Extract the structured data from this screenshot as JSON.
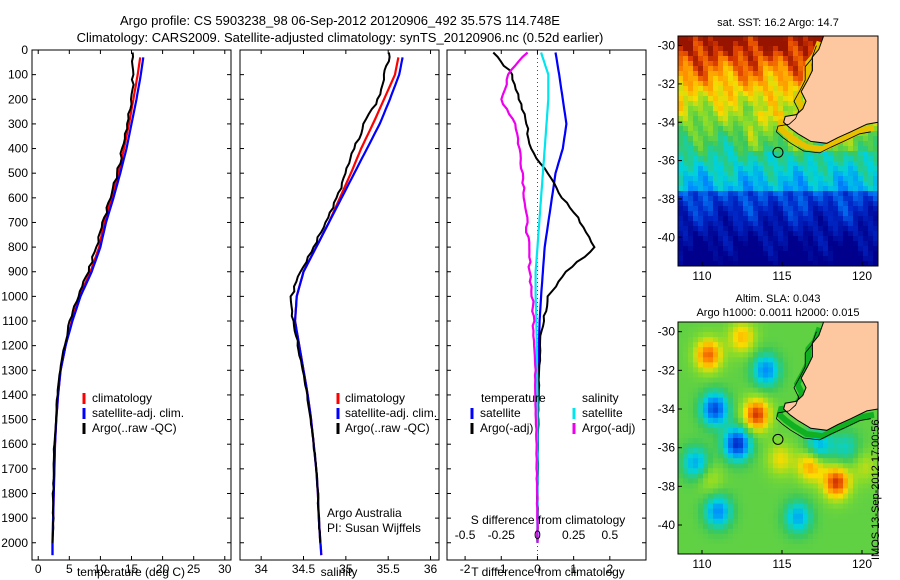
{
  "title": {
    "line1": "Argo profile: CS 5903238_98 06-Sep-2012 20120906_492 35.57S 114.748E",
    "line2": "Climatology: CARS2009. Satellite-adjusted climatology: synTS_20120906.nc (0.52d earlier)"
  },
  "colors": {
    "climatology": "#ff0000",
    "satellite": "#0000ff",
    "argo": "#000000",
    "satellite_s": "#00e5ee",
    "argo_s": "#ee00ee"
  },
  "chart_data": [
    {
      "id": "temperature",
      "type": "line",
      "xlabel": "temperature (deg C)",
      "ylabel": "",
      "xlim": [
        -1,
        31
      ],
      "ylim": [
        2070,
        0
      ],
      "xticks": [
        0,
        5,
        10,
        15,
        20,
        25,
        30
      ],
      "yticks": [
        0,
        100,
        200,
        300,
        400,
        500,
        600,
        700,
        800,
        900,
        1000,
        1100,
        1200,
        1300,
        1400,
        1500,
        1600,
        1700,
        1800,
        1900,
        2000
      ],
      "legend": [
        "climatology",
        "satellite-adj. clim.",
        "Argo(..raw -QC)"
      ],
      "series": [
        {
          "name": "climatology",
          "color": "#ff0000",
          "x": [
            16.4,
            16.0,
            15.3,
            14.6,
            13.8,
            12.9,
            11.8,
            10.6,
            9.8,
            8.4,
            6.6,
            5.4,
            4.4,
            3.6,
            3.2,
            2.9,
            2.7,
            2.6,
            2.5,
            2.4,
            2.3,
            2.3
          ],
          "y": [
            30,
            100,
            200,
            300,
            400,
            500,
            600,
            700,
            800,
            900,
            1000,
            1100,
            1200,
            1300,
            1400,
            1500,
            1600,
            1700,
            1800,
            1900,
            2000,
            2050
          ]
        },
        {
          "name": "satellite-adj. clim.",
          "color": "#0000ff",
          "x": [
            16.9,
            16.5,
            15.8,
            15.0,
            14.2,
            13.2,
            12.1,
            10.9,
            10.0,
            8.6,
            6.8,
            5.5,
            4.4,
            3.6,
            3.2,
            2.9,
            2.7,
            2.6,
            2.5,
            2.4,
            2.3,
            2.3
          ],
          "y": [
            30,
            100,
            200,
            300,
            400,
            500,
            600,
            700,
            800,
            900,
            1000,
            1100,
            1200,
            1300,
            1400,
            1500,
            1600,
            1700,
            1800,
            1900,
            2000,
            2050
          ]
        },
        {
          "name": "Argo(..raw -QC)",
          "color": "#000000",
          "x": [
            15.2,
            15.3,
            15.0,
            14.4,
            13.6,
            12.7,
            11.6,
            10.4,
            9.4,
            8.0,
            6.4,
            5.2,
            4.2,
            3.5,
            3.1,
            2.8,
            2.6,
            2.5,
            2.4,
            2.4,
            2.3
          ],
          "y": [
            10,
            100,
            200,
            300,
            400,
            500,
            600,
            700,
            800,
            900,
            1000,
            1100,
            1200,
            1300,
            1400,
            1500,
            1600,
            1700,
            1800,
            1900,
            2000
          ]
        }
      ]
    },
    {
      "id": "salinity",
      "type": "line",
      "xlabel": "salinity",
      "ylabel": "",
      "xlim": [
        33.75,
        36.1
      ],
      "ylim": [
        2070,
        0
      ],
      "xticks": [
        34,
        34.5,
        35,
        35.5,
        36
      ],
      "xticklabels": [
        "34",
        "34.5",
        "35",
        "35.5",
        "36"
      ],
      "legend": [
        "climatology",
        "satellite-adj. clim.",
        "Argo(..raw -QC)"
      ],
      "annotation": [
        "Argo Australia",
        "PI: Susan Wijffels"
      ],
      "series": [
        {
          "name": "climatology",
          "color": "#ff0000",
          "x": [
            35.62,
            35.58,
            35.45,
            35.32,
            35.18,
            35.06,
            34.93,
            34.8,
            34.65,
            34.5,
            34.42,
            34.4,
            34.45,
            34.5,
            34.55,
            34.59,
            34.62,
            34.65,
            34.67,
            34.68,
            34.7,
            34.71
          ],
          "y": [
            30,
            100,
            200,
            300,
            400,
            500,
            600,
            700,
            800,
            900,
            1000,
            1100,
            1200,
            1300,
            1400,
            1500,
            1600,
            1700,
            1800,
            1900,
            2000,
            2050
          ]
        },
        {
          "name": "satellite-adj. clim.",
          "color": "#0000ff",
          "x": [
            35.67,
            35.63,
            35.52,
            35.4,
            35.25,
            35.1,
            34.95,
            34.8,
            34.65,
            34.5,
            34.42,
            34.4,
            34.45,
            34.5,
            34.55,
            34.59,
            34.62,
            34.65,
            34.67,
            34.68,
            34.7,
            34.71
          ],
          "y": [
            30,
            100,
            200,
            300,
            400,
            500,
            600,
            700,
            800,
            900,
            1000,
            1100,
            1200,
            1300,
            1400,
            1500,
            1600,
            1700,
            1800,
            1900,
            2000,
            2050
          ]
        },
        {
          "name": "Argo(..raw -QC)",
          "color": "#000000",
          "x": [
            35.52,
            35.46,
            35.38,
            35.22,
            35.1,
            35.0,
            34.9,
            34.77,
            34.62,
            34.46,
            34.36,
            34.38,
            34.43,
            34.49,
            34.54,
            34.58,
            34.62,
            34.65,
            34.67,
            34.68,
            34.7
          ],
          "y": [
            10,
            100,
            200,
            300,
            400,
            500,
            600,
            700,
            800,
            900,
            1000,
            1100,
            1200,
            1300,
            1400,
            1500,
            1600,
            1700,
            1800,
            1900,
            2000
          ]
        }
      ]
    },
    {
      "id": "difference",
      "type": "line",
      "xlabel": "T difference from climatology",
      "xlabel_top": "S difference from climatology",
      "ylabel": "",
      "xlim": [
        -2.5,
        3
      ],
      "ylim": [
        2070,
        0
      ],
      "xticks": [
        -2,
        -1,
        0,
        1,
        2
      ],
      "sticks": [
        "-0.5",
        "-0.25",
        "0",
        "0.25",
        "0.5"
      ],
      "sticks_x": [
        -2,
        -1,
        0,
        1,
        2
      ],
      "legend_left_title": "temperature",
      "legend_right_title": "salinity",
      "legend_left": [
        "satellite",
        "Argo(-adj)"
      ],
      "legend_right": [
        "satellite",
        "Argo(-adj)"
      ],
      "series": [
        {
          "name": "satellite",
          "color": "#0000ff",
          "x": [
            0.5,
            0.6,
            0.7,
            0.8,
            0.7,
            0.5,
            0.4,
            0.3,
            0.2,
            0.15,
            0.1,
            0.06,
            0.04,
            0.03,
            0.02,
            0.01,
            0.01,
            0.0,
            0.0,
            0.0,
            0.0
          ],
          "y": [
            10,
            100,
            200,
            300,
            400,
            500,
            600,
            700,
            800,
            900,
            1000,
            1100,
            1200,
            1300,
            1400,
            1500,
            1600,
            1700,
            1800,
            1900,
            2000
          ]
        },
        {
          "name": "Argo(-adj)",
          "color": "#000000",
          "x": [
            -1.2,
            -0.7,
            -0.5,
            -0.3,
            -0.2,
            0.3,
            0.7,
            1.2,
            1.6,
            0.8,
            0.3,
            0.15,
            0.08,
            0.05,
            0.03,
            0.02,
            0.01,
            0.01,
            0.0,
            0.0,
            0.0
          ],
          "y": [
            10,
            100,
            200,
            300,
            400,
            500,
            600,
            700,
            800,
            900,
            1000,
            1100,
            1200,
            1300,
            1400,
            1500,
            1600,
            1700,
            1800,
            1900,
            2000
          ]
        },
        {
          "name": "salinity satellite",
          "color": "#00e5ee",
          "x": [
            0.1,
            0.3,
            0.3,
            0.25,
            0.2,
            0.15,
            0.1,
            0.05,
            0.0,
            -0.05,
            -0.05,
            -0.03,
            -0.02,
            -0.01,
            0.0,
            0.0,
            0.0,
            0.0,
            0.0,
            0.0,
            0.0
          ],
          "y": [
            10,
            100,
            200,
            300,
            400,
            500,
            600,
            700,
            800,
            900,
            1000,
            1100,
            1200,
            1300,
            1400,
            1500,
            1600,
            1700,
            1800,
            1900,
            2000
          ]
        },
        {
          "name": "salinity Argo(-adj)",
          "color": "#ee00ee",
          "x": [
            -0.3,
            -0.8,
            -1.0,
            -0.6,
            -0.5,
            -0.4,
            -0.35,
            -0.3,
            -0.25,
            -0.2,
            -0.15,
            -0.1,
            -0.08,
            -0.06,
            -0.05,
            -0.04,
            -0.03,
            -0.02,
            -0.01,
            0.0,
            0.0
          ],
          "y": [
            10,
            100,
            200,
            300,
            400,
            500,
            600,
            700,
            800,
            900,
            1000,
            1100,
            1200,
            1300,
            1400,
            1500,
            1600,
            1700,
            1800,
            1900,
            2000
          ]
        }
      ]
    },
    {
      "id": "sst_map",
      "type": "heatmap",
      "title": "sat. SST: 16.2  Argo: 14.7",
      "xlim": [
        108.5,
        121
      ],
      "ylim": [
        -41.5,
        -29.5
      ],
      "xticks": [
        110,
        115,
        120
      ],
      "yticks": [
        -30,
        -32,
        -34,
        -36,
        -38,
        -40
      ],
      "argo_location": [
        114.748,
        -35.57
      ]
    },
    {
      "id": "sla_map",
      "type": "heatmap",
      "title": "Altim. SLA: 0.043",
      "subtitle": "Argo h1000: 0.0011 h2000: 0.015",
      "xlim": [
        108.5,
        121
      ],
      "ylim": [
        -41.5,
        -29.5
      ],
      "xticks": [
        110,
        115,
        120
      ],
      "yticks": [
        -30,
        -32,
        -34,
        -36,
        -38,
        -40
      ],
      "argo_location": [
        114.748,
        -35.57
      ]
    }
  ],
  "vertical_label": "IMOS 13-Sep-2012 17:00:56"
}
